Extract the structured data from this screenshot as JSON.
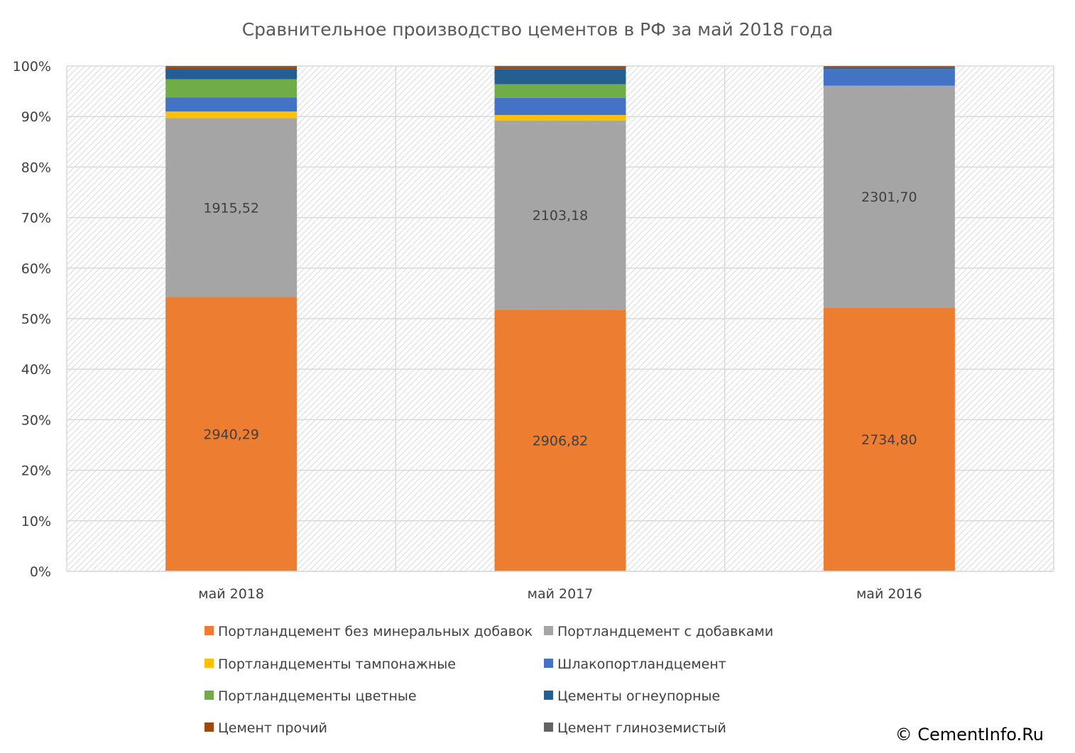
{
  "chart_data": {
    "type": "bar",
    "stacked": "percent",
    "title": "Сравнительное производство цементов в РФ за май 2018 года",
    "categories": [
      "май 2018",
      "май 2017",
      "май 2016"
    ],
    "y_ticks": [
      "0%",
      "10%",
      "20%",
      "30%",
      "40%",
      "50%",
      "60%",
      "70%",
      "80%",
      "90%",
      "100%"
    ],
    "ylim": [
      0,
      100
    ],
    "grid": true,
    "legend_position": "bottom",
    "series": [
      {
        "name": "Портландцемент без минеральных добавок",
        "color": "#ED7D31",
        "values": [
          54.3,
          51.8,
          52.2
        ],
        "labels": [
          "2940,29",
          "2906,82",
          "2734,80"
        ]
      },
      {
        "name": "Портландцемент с добавками",
        "color": "#A5A5A5",
        "values": [
          35.4,
          37.4,
          43.9
        ],
        "labels": [
          "1915,52",
          "2103,18",
          "2301,70"
        ]
      },
      {
        "name": "Портландцементы тампонажные",
        "color": "#FFC000",
        "values": [
          1.3,
          1.1,
          0.0
        ],
        "labels": [
          "",
          "",
          ""
        ]
      },
      {
        "name": "Шлакопортландцемент",
        "color": "#4472C4",
        "values": [
          2.8,
          3.4,
          3.3
        ],
        "labels": [
          "",
          "",
          ""
        ]
      },
      {
        "name": "Портландцементы цветные",
        "color": "#70AD47",
        "values": [
          3.6,
          2.7,
          0.0
        ],
        "labels": [
          "",
          "",
          ""
        ]
      },
      {
        "name": "Цементы огнеупорные",
        "color": "#255E91",
        "values": [
          1.9,
          3.0,
          0.2
        ],
        "labels": [
          "",
          "",
          ""
        ]
      },
      {
        "name": "Цемент прочий",
        "color": "#9E480E",
        "values": [
          0.5,
          0.4,
          0.3
        ],
        "labels": [
          "",
          "",
          ""
        ]
      },
      {
        "name": "Цемент глиноземистый",
        "color": "#636363",
        "values": [
          0.2,
          0.2,
          0.1
        ],
        "labels": [
          "",
          "",
          ""
        ]
      }
    ]
  },
  "copyright": "© CementInfo.Ru"
}
